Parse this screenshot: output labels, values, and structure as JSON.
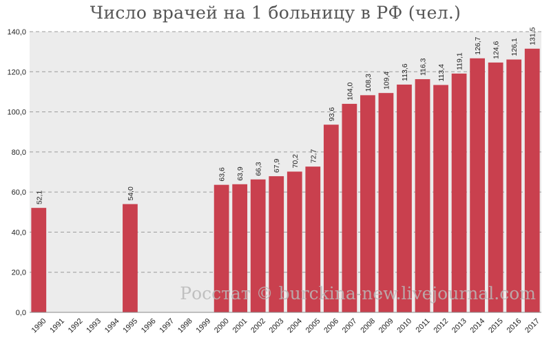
{
  "chart_data": {
    "type": "bar",
    "title": "Число врачей на 1 больницу в РФ (чел.)",
    "xlabel": "",
    "ylabel": "",
    "ylim": [
      0,
      140
    ],
    "y_ticks": [
      "0,0",
      "20,0",
      "40,0",
      "60,0",
      "80,0",
      "100,0",
      "120,0",
      "140,0"
    ],
    "grid": "horizontal, dashed",
    "legend": "none",
    "bar_color": "#c9404e",
    "plot_background": "#ececec",
    "categories": [
      "1990",
      "1991",
      "1992",
      "1993",
      "1994",
      "1995",
      "1996",
      "1997",
      "1998",
      "1999",
      "2000",
      "2001",
      "2002",
      "2003",
      "2004",
      "2005",
      "2006",
      "2007",
      "2008",
      "2009",
      "2010",
      "2011",
      "2012",
      "2013",
      "2014",
      "2015",
      "2016",
      "2017"
    ],
    "values": [
      52.1,
      null,
      null,
      null,
      null,
      54.0,
      null,
      null,
      null,
      null,
      63.6,
      63.9,
      66.3,
      67.9,
      70.2,
      72.7,
      93.6,
      104.0,
      108.3,
      109.4,
      113.6,
      116.3,
      113.4,
      119.1,
      126.7,
      124.6,
      126.1,
      131.5
    ],
    "data_labels": [
      "52,1",
      "",
      "",
      "",
      "",
      "54,0",
      "",
      "",
      "",
      "",
      "63,6",
      "63,9",
      "66,3",
      "67,9",
      "70,2",
      "72,7",
      "93,6",
      "104,0",
      "108,3",
      "109,4",
      "113,6",
      "116,3",
      "113,4",
      "119,1",
      "126,7",
      "124,6",
      "126,1",
      "131,5"
    ]
  },
  "watermark": "Росстат © burckina-new.livejournal.com"
}
